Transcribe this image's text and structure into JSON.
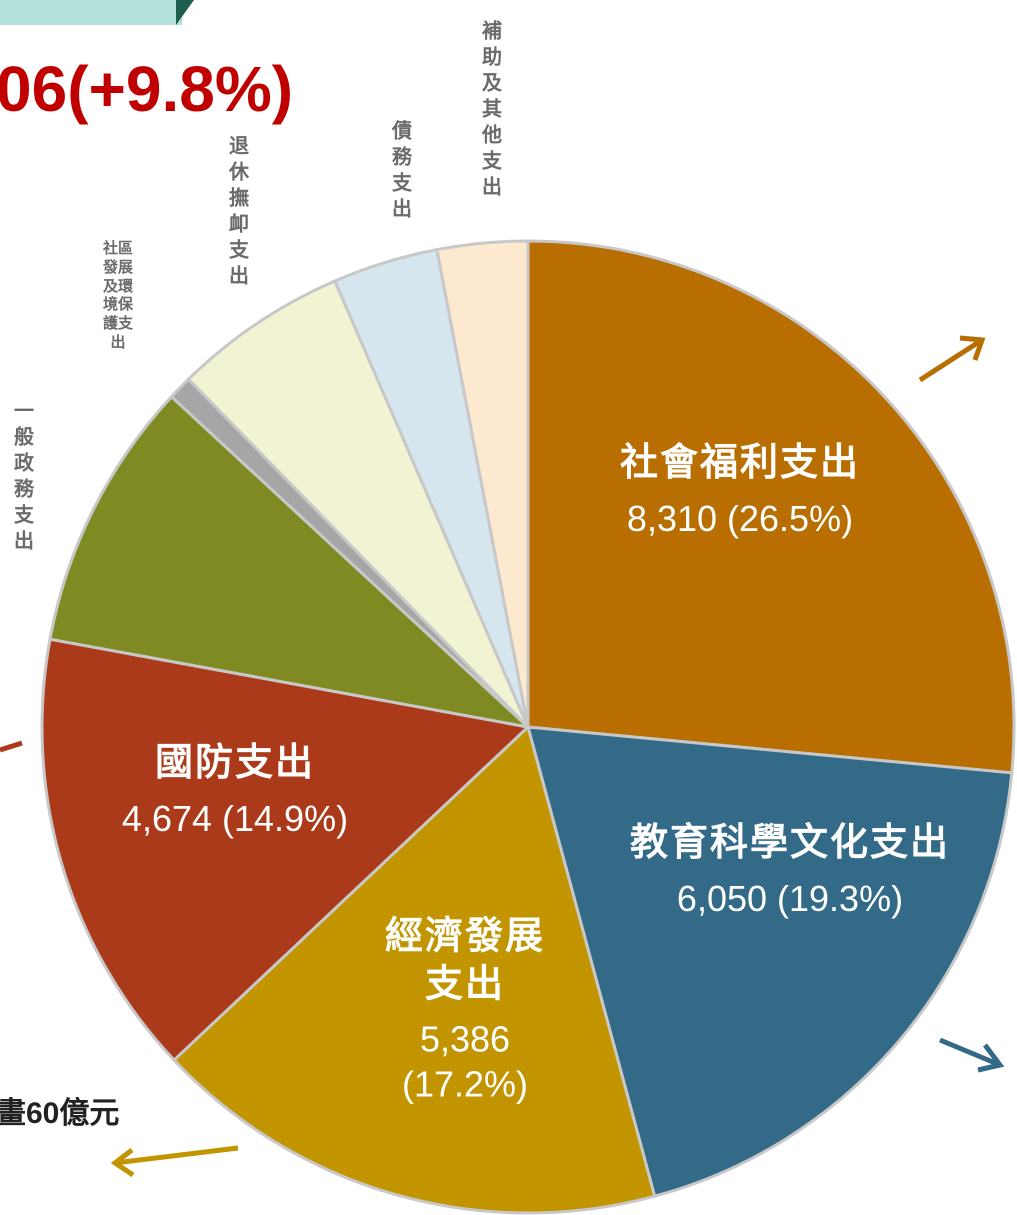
{
  "chart_data": {
    "type": "pie",
    "title": "06(+9.8%)",
    "annotation": "畫60億元",
    "categories": [
      "社會福利支出",
      "教育科學文化支出",
      "經濟發展支出",
      "國防支出",
      "一般政務支出",
      "社區發展及環境保護支出",
      "退休撫卹支出",
      "債務支出",
      "補助及其他支出"
    ],
    "values": [
      8310,
      6050,
      5386,
      4674,
      2822,
      251,
      1819,
      1098,
      941
    ],
    "value_labels": [
      "8,310 (26.5%)",
      "6,050 (19.3%)",
      "5,386 (17.2%)",
      "4,674 (14.9%)",
      null,
      null,
      null,
      null,
      null
    ],
    "colors": [
      "#b86e00",
      "#336a88",
      "#c29500",
      "#ab3a1a",
      "#7f8a22",
      "#a6a6a6",
      "#f1f3d3",
      "#d6e6ef",
      "#fde9cf"
    ]
  }
}
